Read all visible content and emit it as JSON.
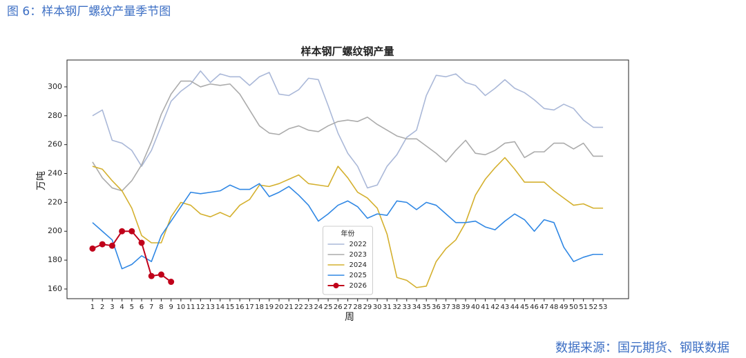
{
  "caption": "图 6：样本钢厂螺纹产量季节图",
  "source": "数据来源：国元期货、钢联数据",
  "chart_data": {
    "type": "line",
    "title": "样本钢厂螺纹钢产量",
    "x_label": "周",
    "y_label": "万吨",
    "legend_title": "年份",
    "legend": "lower center",
    "x": [
      1,
      2,
      3,
      4,
      5,
      6,
      7,
      8,
      9,
      10,
      11,
      12,
      13,
      14,
      15,
      16,
      17,
      18,
      19,
      20,
      21,
      22,
      23,
      24,
      25,
      26,
      27,
      28,
      29,
      30,
      31,
      32,
      33,
      34,
      35,
      36,
      37,
      38,
      39,
      40,
      41,
      42,
      43,
      44,
      45,
      46,
      47,
      48,
      49,
      50,
      51,
      52,
      53
    ],
    "xlim": [
      -1.6,
      55.6
    ],
    "xticks": [
      1,
      2,
      3,
      4,
      5,
      6,
      7,
      8,
      9,
      10,
      11,
      12,
      13,
      14,
      15,
      16,
      17,
      18,
      19,
      20,
      21,
      22,
      23,
      24,
      25,
      26,
      27,
      28,
      29,
      30,
      31,
      32,
      33,
      34,
      35,
      36,
      37,
      38,
      39,
      40,
      41,
      42,
      43,
      44,
      45,
      46,
      47,
      48,
      49,
      50,
      51,
      52,
      53
    ],
    "ylim": [
      153.3,
      318.6
    ],
    "yticks": [
      160,
      180,
      200,
      220,
      240,
      260,
      280,
      300
    ],
    "series": [
      {
        "name": "2022",
        "color": "#aab8d8",
        "values": [
          280,
          284,
          263,
          261,
          256,
          245,
          256,
          273,
          290,
          297,
          302,
          311,
          303,
          309,
          307,
          307,
          301,
          307,
          310,
          295,
          294,
          298,
          306,
          305,
          287,
          268,
          254,
          245,
          230,
          232,
          245,
          253,
          265,
          270,
          294,
          308,
          307,
          309,
          303,
          301,
          294,
          299,
          305,
          299,
          296,
          291,
          285,
          284,
          288,
          285,
          277,
          272,
          272
        ]
      },
      {
        "name": "2023",
        "color": "#ababab",
        "values": [
          248,
          237,
          230,
          228,
          235,
          246,
          262,
          281,
          295,
          304,
          304,
          300,
          302,
          301,
          302,
          295,
          284,
          273,
          268,
          267,
          271,
          273,
          270,
          269,
          273,
          276,
          277,
          276,
          279,
          274,
          270,
          266,
          264,
          264,
          259,
          254,
          248,
          256,
          263,
          254,
          253,
          256,
          261,
          262,
          251,
          255,
          255,
          261,
          261,
          257,
          261,
          252,
          252
        ]
      },
      {
        "name": "2024",
        "color": "#d4b02e",
        "values": [
          245,
          243,
          235,
          228,
          216,
          197,
          192,
          192,
          210,
          220,
          218,
          212,
          210,
          213,
          210,
          218,
          222,
          232,
          231,
          233,
          236,
          239,
          233,
          232,
          231,
          245,
          237,
          227,
          223,
          216,
          198,
          168,
          166,
          161,
          162,
          179,
          188,
          194,
          206,
          225,
          236,
          244,
          251,
          243,
          234,
          234,
          234,
          228,
          223,
          218,
          219,
          216,
          216
        ]
      },
      {
        "name": "2025",
        "color": "#2f87e4",
        "values": [
          206,
          200,
          194,
          174,
          177,
          183,
          179,
          197,
          207,
          217,
          227,
          226,
          227,
          228,
          232,
          229,
          229,
          233,
          224,
          227,
          231,
          225,
          218,
          207,
          212,
          218,
          221,
          217,
          209,
          212,
          211,
          221,
          220,
          215,
          220,
          218,
          212,
          206,
          206,
          207,
          203,
          201,
          207,
          212,
          208,
          200,
          208,
          206,
          189,
          179,
          182,
          184,
          184
        ]
      },
      {
        "name": "2026",
        "color": "#c0001a",
        "marker": "o",
        "values": [
          188,
          191,
          190,
          200,
          200,
          192,
          169,
          170,
          165,
          null,
          null,
          null,
          null,
          null,
          null,
          null,
          null,
          null,
          null,
          null,
          null,
          null,
          null,
          null,
          null,
          null,
          null,
          null,
          null,
          null,
          null,
          null,
          null,
          null,
          null,
          null,
          null,
          null,
          null,
          null,
          null,
          null,
          null,
          null,
          null,
          null,
          null,
          null,
          null,
          null,
          null,
          null,
          null
        ]
      }
    ]
  }
}
